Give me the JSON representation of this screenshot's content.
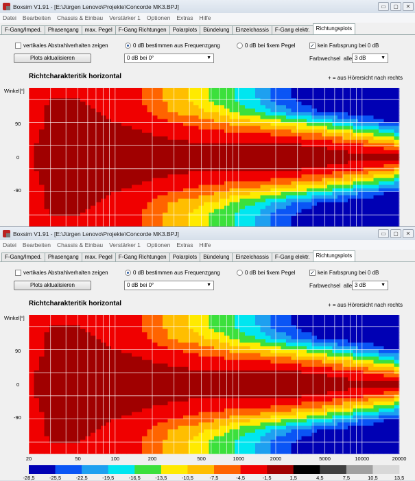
{
  "window": {
    "title": "Boxsim V1.91 - [E:\\Jürgen Lenovo\\Projekte\\Concorde MK3.BPJ]",
    "buttons": [
      "▭",
      "▢",
      "✕"
    ]
  },
  "menu": [
    "Datei",
    "Bearbeiten",
    "Chassis & Einbau",
    "Verstärker 1",
    "Optionen",
    "Extras",
    "Hilfe"
  ],
  "tabs": [
    "F-Gang/Imped.",
    "Phasengang",
    "max. Pegel",
    "F-Gang Richtungen",
    "Polarplots",
    "Bündelung",
    "Einzelchassis",
    "F-Gang elektr.",
    "Richtungsplots"
  ],
  "active_tab": "Richtungsplots",
  "controls": {
    "vertical_checkbox": {
      "label": "vertikales Abstrahlverhalten zeigen",
      "checked": false
    },
    "update_button": "Plots aktualisieren",
    "radio_freq": {
      "label": "0 dB bestimmen aus Frequenzgang",
      "selected": true
    },
    "ref_select": "0 dB bei 0°",
    "radio_fixed": {
      "label": "0 dB bei fixem Pegel",
      "selected": false
    },
    "no_jump_checkbox": {
      "label": "kein Farbsprung bei 0 dB",
      "checked": true,
      "mark": "✓"
    },
    "color_change_label": "Farbwechsel  alle",
    "color_change_select": "3 dB"
  },
  "chart_data": {
    "type": "heatmap",
    "title": "Richtcharakteritik horizontal",
    "note": "+ = aus Hörersicht nach rechts",
    "ylabel": "Winkel[°]",
    "xscale": "log",
    "xlim": [
      20,
      20000
    ],
    "ylim": [
      -180,
      180
    ],
    "xticks": [
      "20",
      "50",
      "100",
      "200",
      "500",
      "1000",
      "2000",
      "5000",
      "10000",
      "20000"
    ],
    "yticks": [
      "90",
      "0",
      "-90"
    ],
    "frequencies": [
      20,
      30,
      50,
      70,
      100,
      150,
      200,
      300,
      500,
      700,
      1000,
      1500,
      2000,
      3000,
      5000,
      7000,
      10000,
      15000,
      20000
    ],
    "angles": [
      180,
      150,
      120,
      90,
      60,
      30,
      0,
      -30,
      -60,
      -90,
      -120,
      -150,
      -180
    ],
    "values_db": [
      [
        -3,
        -2,
        -2,
        -2,
        -3,
        -4,
        -6,
        -9,
        -12,
        -15,
        -17,
        -20,
        -24,
        -26,
        -28,
        -28,
        -28,
        -28,
        -28
      ],
      [
        -3,
        -1.5,
        -1.5,
        -2,
        -3,
        -4,
        -6,
        -9,
        -12,
        -15,
        -17,
        -20,
        -24,
        -26,
        -28,
        -28,
        -28,
        -28,
        -28
      ],
      [
        -3,
        -1,
        -1,
        -1.5,
        -2,
        -3,
        -5,
        -8,
        -10,
        -12,
        -15,
        -17,
        -20,
        -23,
        -26,
        -27,
        -28,
        -28,
        -28
      ],
      [
        -2.5,
        -1,
        -1,
        -1,
        -1.5,
        -2,
        -3,
        -4.5,
        -6,
        -7,
        -9,
        -10,
        -12,
        -14,
        -17,
        -20,
        -22,
        -25,
        -26
      ],
      [
        -2,
        -1,
        -1,
        -1,
        -1,
        -1,
        -1.5,
        -2,
        -3,
        -3.5,
        -4,
        -4,
        -5,
        -6,
        -8,
        -10,
        -12,
        -15,
        -18
      ],
      [
        -2,
        -0.5,
        -0.5,
        -0.5,
        -1,
        -0.5,
        -0.5,
        -1,
        -1,
        -1,
        -1,
        -1,
        -1,
        -1,
        -2,
        -3,
        -4,
        -6,
        -8
      ],
      [
        -2,
        -0.5,
        -0.5,
        -0.5,
        -0.5,
        0,
        0,
        0,
        0,
        0,
        0,
        0,
        0,
        0,
        0,
        0,
        0,
        0,
        0
      ],
      [
        -2,
        -0.5,
        -0.5,
        -0.5,
        -1,
        -0.5,
        -0.5,
        -1,
        -1,
        -1,
        -1,
        -1,
        -1,
        -1,
        -2,
        -3,
        -4,
        -6,
        -8
      ],
      [
        -2,
        -1,
        -1,
        -1,
        -1,
        -1,
        -1.5,
        -2,
        -3,
        -3.5,
        -4,
        -4,
        -5,
        -6,
        -8,
        -10,
        -12,
        -15,
        -18
      ],
      [
        -2.5,
        -1,
        -1,
        -1,
        -1.5,
        -2,
        -3,
        -4.5,
        -6,
        -7,
        -9,
        -10,
        -12,
        -14,
        -17,
        -20,
        -22,
        -25,
        -26
      ],
      [
        -3,
        -1,
        -1,
        -1.5,
        -2,
        -3,
        -5,
        -8,
        -10,
        -12,
        -15,
        -17,
        -20,
        -23,
        -26,
        -27,
        -28,
        -28,
        -28
      ],
      [
        -3,
        -1.5,
        -1.5,
        -2,
        -3,
        -4,
        -6,
        -9,
        -12,
        -15,
        -17,
        -20,
        -24,
        -26,
        -28,
        -28,
        -28,
        -28,
        -28
      ],
      [
        -3,
        -2,
        -2,
        -2,
        -3,
        -4,
        -6,
        -9,
        -12,
        -15,
        -17,
        -20,
        -24,
        -26,
        -28,
        -28,
        -28,
        -28,
        -28
      ]
    ],
    "colorbar": {
      "labels": [
        "-28,5",
        "-25,5",
        "-22,5",
        "-19,5",
        "-16,5",
        "-13,5",
        "-10,5",
        "-7,5",
        "-4,5",
        "-1,5",
        "1,5",
        "4,5",
        "7,5",
        "10,5",
        "13,5"
      ],
      "colors": [
        "#0000b4",
        "#0a55f5",
        "#1ea0f0",
        "#00e6f0",
        "#3ce03c",
        "#ffea00",
        "#ffbe00",
        "#ff6400",
        "#f00000",
        "#a00000",
        "#000000",
        "#404040",
        "#a0a0a0",
        "#d8d8d8"
      ]
    }
  }
}
